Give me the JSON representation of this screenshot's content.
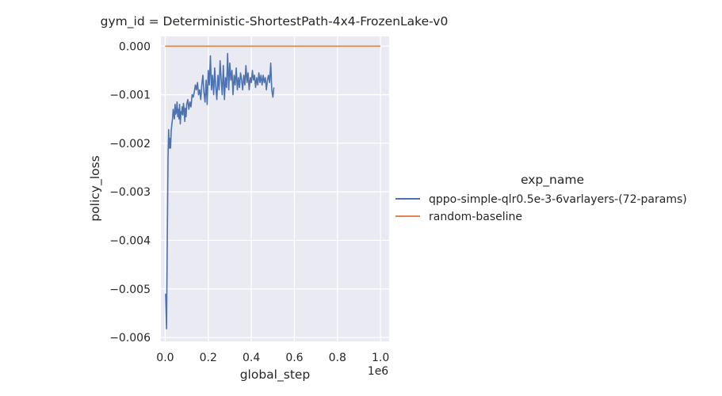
{
  "chart_data": {
    "type": "line",
    "title": "gym_id = Deterministic-ShortestPath-4x4-FrozenLake-v0",
    "xlabel": "global_step",
    "ylabel": "policy_loss",
    "x_offset_label": "1e6",
    "xlim": [
      -0.02,
      1.04
    ],
    "ylim": [
      -0.00608,
      0.0002
    ],
    "x_ticks": [
      0.0,
      0.2,
      0.4,
      0.6,
      0.8,
      1.0
    ],
    "x_tick_labels": [
      "0.0",
      "0.2",
      "0.4",
      "0.6",
      "0.8",
      "1.0"
    ],
    "y_ticks": [
      0.0,
      -0.001,
      -0.002,
      -0.003,
      -0.004,
      -0.005,
      -0.006
    ],
    "y_tick_labels": [
      "0.000",
      "−0.001",
      "−0.002",
      "−0.003",
      "−0.004",
      "−0.005",
      "−0.006"
    ],
    "grid": true,
    "background": "#eaeaf2",
    "legend": {
      "title": "exp_name",
      "placement": "right"
    },
    "series": [
      {
        "name": "qppo-simple-qlr0.5e-3-6varlayers-(72-params)",
        "color": "#4c72b0",
        "x": [
          0.002,
          0.006,
          0.01,
          0.013,
          0.016,
          0.019,
          0.022,
          0.025,
          0.028,
          0.031,
          0.034,
          0.037,
          0.04,
          0.043,
          0.046,
          0.049,
          0.052,
          0.055,
          0.058,
          0.061,
          0.064,
          0.067,
          0.07,
          0.073,
          0.076,
          0.079,
          0.082,
          0.085,
          0.088,
          0.091,
          0.094,
          0.097,
          0.1,
          0.105,
          0.11,
          0.115,
          0.12,
          0.125,
          0.13,
          0.135,
          0.14,
          0.145,
          0.15,
          0.155,
          0.16,
          0.165,
          0.17,
          0.175,
          0.18,
          0.185,
          0.19,
          0.195,
          0.2,
          0.205,
          0.21,
          0.215,
          0.22,
          0.225,
          0.23,
          0.235,
          0.24,
          0.245,
          0.25,
          0.255,
          0.26,
          0.265,
          0.27,
          0.275,
          0.28,
          0.285,
          0.29,
          0.295,
          0.3,
          0.305,
          0.31,
          0.315,
          0.32,
          0.325,
          0.33,
          0.335,
          0.34,
          0.345,
          0.35,
          0.355,
          0.36,
          0.365,
          0.37,
          0.375,
          0.38,
          0.385,
          0.39,
          0.395,
          0.4,
          0.405,
          0.41,
          0.415,
          0.42,
          0.425,
          0.43,
          0.435,
          0.44,
          0.445,
          0.45,
          0.455,
          0.46,
          0.465,
          0.47,
          0.475,
          0.48,
          0.485,
          0.49,
          0.495,
          0.5,
          0.505
        ],
        "y": [
          -0.0051,
          -0.00582,
          -0.0038,
          -0.0023,
          -0.00172,
          -0.0021,
          -0.0019,
          -0.0021,
          -0.00175,
          -0.0016,
          -0.0015,
          -0.0013,
          -0.0014,
          -0.0015,
          -0.0012,
          -0.0014,
          -0.00135,
          -0.00115,
          -0.00145,
          -0.0013,
          -0.0015,
          -0.0012,
          -0.0016,
          -0.00135,
          -0.0014,
          -0.00125,
          -0.00142,
          -0.00118,
          -0.0013,
          -0.00155,
          -0.00128,
          -0.00145,
          -0.0012,
          -0.0011,
          -0.0013,
          -0.00115,
          -0.00125,
          -0.001,
          -0.00105,
          -0.00095,
          -0.0008,
          -0.0009,
          -0.00075,
          -0.001,
          -0.0009,
          -0.0011,
          -0.0008,
          -0.0006,
          -0.00095,
          -0.00115,
          -0.0007,
          -0.0012,
          -0.0005,
          -0.0008,
          -0.0002,
          -0.0009,
          -0.0006,
          -0.001,
          -0.00045,
          -0.00085,
          -0.0011,
          -0.0006,
          -0.0009,
          -0.0003,
          -0.0007,
          -0.001,
          -0.0004,
          -0.0011,
          -0.00065,
          -0.00085,
          -0.00015,
          -0.0009,
          -0.00035,
          -0.0007,
          -0.0005,
          -0.001,
          -0.0006,
          -0.0008,
          -0.00045,
          -0.0009,
          -0.00065,
          -0.00085,
          -0.00055,
          -0.0007,
          -0.0009,
          -0.0006,
          -0.0008,
          -0.0004,
          -0.00075,
          -0.00055,
          -0.0009,
          -0.00065,
          -0.00075,
          -0.0005,
          -0.0007,
          -0.0006,
          -0.00085,
          -0.00065,
          -0.0008,
          -0.00055,
          -0.00075,
          -0.0006,
          -0.0008,
          -0.0006,
          -0.00075,
          -0.00065,
          -0.0009,
          -0.0007,
          -0.0006,
          -0.00075,
          -0.00035,
          -0.0009,
          -0.00105,
          -0.00085
        ]
      },
      {
        "name": "random-baseline",
        "color": "#dd8452",
        "x": [
          0.0,
          1.0
        ],
        "y": [
          0.0,
          0.0
        ]
      }
    ]
  }
}
